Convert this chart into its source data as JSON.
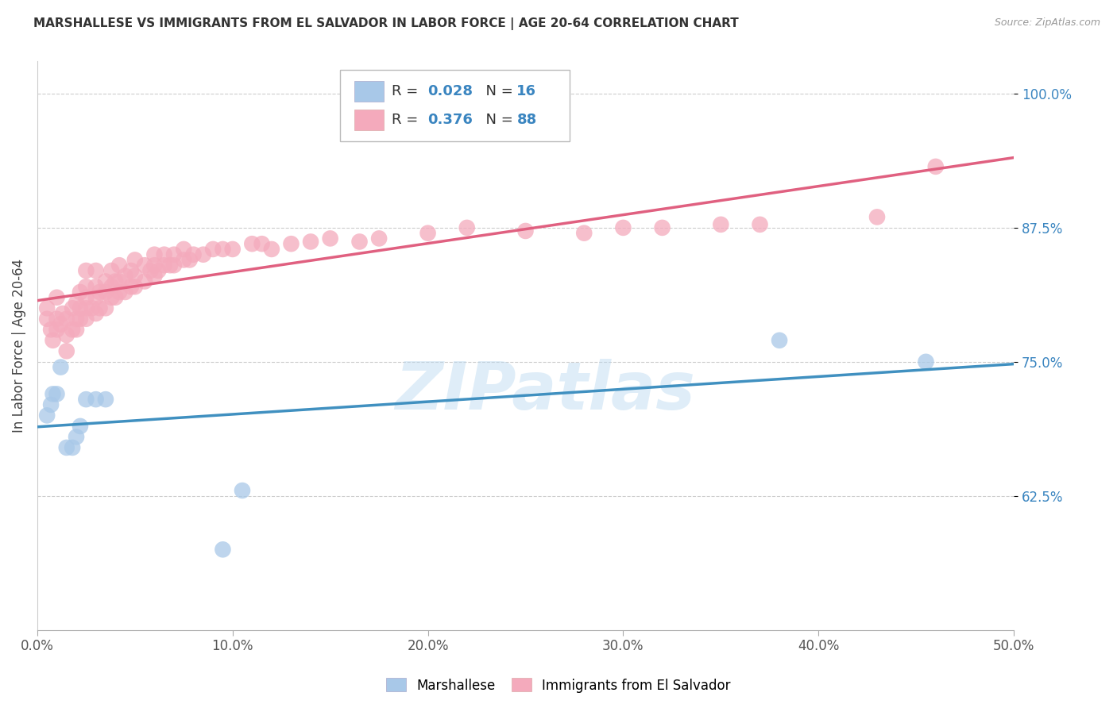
{
  "title": "MARSHALLESE VS IMMIGRANTS FROM EL SALVADOR IN LABOR FORCE | AGE 20-64 CORRELATION CHART",
  "source": "Source: ZipAtlas.com",
  "ylabel": "In Labor Force | Age 20-64",
  "xlim": [
    0.0,
    0.5
  ],
  "ylim": [
    0.5,
    1.03
  ],
  "xticks": [
    0.0,
    0.1,
    0.2,
    0.3,
    0.4,
    0.5
  ],
  "xticklabels": [
    "0.0%",
    "10.0%",
    "20.0%",
    "30.0%",
    "40.0%",
    "50.0%"
  ],
  "yticks": [
    0.625,
    0.75,
    0.875,
    1.0
  ],
  "yticklabels": [
    "62.5%",
    "75.0%",
    "87.5%",
    "100.0%"
  ],
  "legend_R_blue": "0.028",
  "legend_N_blue": "16",
  "legend_R_pink": "0.376",
  "legend_N_pink": "88",
  "blue_color": "#a8c8e8",
  "pink_color": "#f4aabc",
  "blue_line_color": "#4090c0",
  "pink_line_color": "#e06080",
  "label_blue": "Marshallese",
  "label_pink": "Immigrants from El Salvador",
  "watermark": "ZIPatlas",
  "blue_scatter_x": [
    0.005,
    0.007,
    0.008,
    0.01,
    0.012,
    0.015,
    0.018,
    0.02,
    0.022,
    0.025,
    0.03,
    0.035,
    0.095,
    0.105,
    0.38,
    0.455
  ],
  "blue_scatter_y": [
    0.7,
    0.71,
    0.72,
    0.72,
    0.745,
    0.67,
    0.67,
    0.68,
    0.69,
    0.715,
    0.715,
    0.715,
    0.575,
    0.63,
    0.77,
    0.75
  ],
  "pink_scatter_x": [
    0.005,
    0.005,
    0.007,
    0.008,
    0.01,
    0.01,
    0.01,
    0.012,
    0.013,
    0.015,
    0.015,
    0.015,
    0.018,
    0.018,
    0.02,
    0.02,
    0.02,
    0.022,
    0.022,
    0.022,
    0.025,
    0.025,
    0.025,
    0.025,
    0.025,
    0.028,
    0.03,
    0.03,
    0.03,
    0.03,
    0.032,
    0.032,
    0.035,
    0.035,
    0.035,
    0.038,
    0.038,
    0.038,
    0.04,
    0.04,
    0.042,
    0.042,
    0.042,
    0.045,
    0.045,
    0.048,
    0.048,
    0.05,
    0.05,
    0.05,
    0.055,
    0.055,
    0.058,
    0.06,
    0.06,
    0.06,
    0.062,
    0.065,
    0.065,
    0.068,
    0.07,
    0.07,
    0.075,
    0.075,
    0.078,
    0.08,
    0.085,
    0.09,
    0.095,
    0.1,
    0.11,
    0.115,
    0.12,
    0.13,
    0.14,
    0.15,
    0.165,
    0.175,
    0.2,
    0.22,
    0.25,
    0.28,
    0.3,
    0.32,
    0.35,
    0.37,
    0.43,
    0.46
  ],
  "pink_scatter_y": [
    0.79,
    0.8,
    0.78,
    0.77,
    0.78,
    0.79,
    0.81,
    0.785,
    0.795,
    0.76,
    0.775,
    0.79,
    0.78,
    0.8,
    0.78,
    0.79,
    0.805,
    0.79,
    0.8,
    0.815,
    0.79,
    0.8,
    0.81,
    0.82,
    0.835,
    0.8,
    0.795,
    0.81,
    0.82,
    0.835,
    0.8,
    0.815,
    0.8,
    0.815,
    0.825,
    0.81,
    0.82,
    0.835,
    0.81,
    0.825,
    0.815,
    0.825,
    0.84,
    0.815,
    0.83,
    0.82,
    0.835,
    0.82,
    0.83,
    0.845,
    0.825,
    0.84,
    0.835,
    0.83,
    0.84,
    0.85,
    0.835,
    0.84,
    0.85,
    0.84,
    0.84,
    0.85,
    0.845,
    0.855,
    0.845,
    0.85,
    0.85,
    0.855,
    0.855,
    0.855,
    0.86,
    0.86,
    0.855,
    0.86,
    0.862,
    0.865,
    0.862,
    0.865,
    0.87,
    0.875,
    0.872,
    0.87,
    0.875,
    0.875,
    0.878,
    0.878,
    0.885,
    0.932
  ]
}
